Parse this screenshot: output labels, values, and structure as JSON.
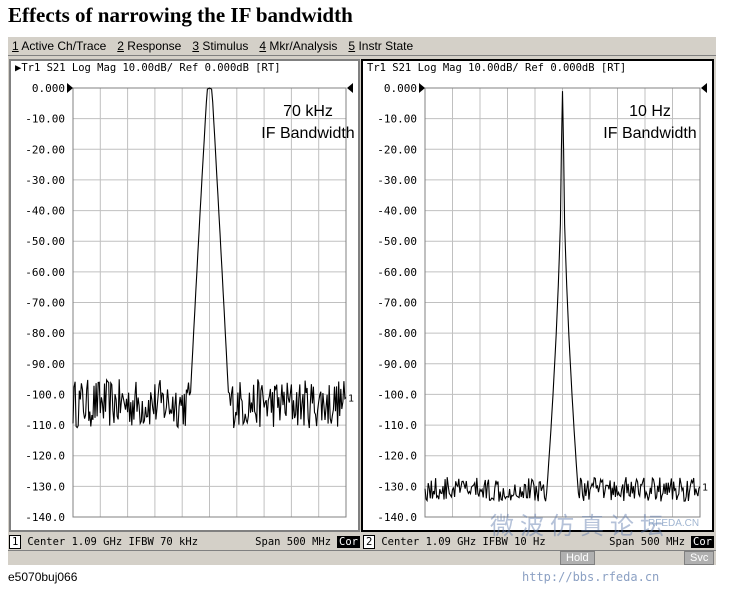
{
  "title": "Effects of narrowing the IF bandwidth",
  "menu": [
    {
      "num": "1",
      "label": " Active Ch/Trace"
    },
    {
      "num": "2",
      "label": " Response"
    },
    {
      "num": "3",
      "label": " Stimulus"
    },
    {
      "num": "4",
      "label": " Mkr/Analysis"
    },
    {
      "num": "5",
      "label": " Instr State"
    }
  ],
  "chart_data": [
    {
      "type": "line",
      "header": "Tr1 S21 Log Mag 10.00dB/ Ref 0.000dB [RT]",
      "annotation": [
        "70 kHz",
        "IF Bandwidth"
      ],
      "ylim": [
        -140,
        0
      ],
      "yticks": [
        "0.000",
        "-10.00",
        "-20.00",
        "-30.00",
        "-40.00",
        "-50.00",
        "-60.00",
        "-70.00",
        "-80.00",
        "-90.00",
        "-100.0",
        "-110.0",
        "-120.0",
        "-130.0",
        "-140.0"
      ],
      "xlim": [
        0.84,
        1.34
      ],
      "x_unit": "GHz",
      "center_ghz": 1.09,
      "noise_floor_db": -103,
      "noise_amplitude_db": 8,
      "peak_db": 0,
      "trace_marker": "1",
      "status": {
        "chan": "1",
        "center": "Center 1.09 GHz",
        "ifbw": "IFBW 70 kHz",
        "span": "Span 500 MHz",
        "cor": "Cor"
      }
    },
    {
      "type": "line",
      "header": "Tr1 S21 Log Mag 10.00dB/ Ref 0.000dB [RT]",
      "annotation": [
        "10 Hz",
        "IF Bandwidth"
      ],
      "ylim": [
        -140,
        0
      ],
      "yticks": [
        "0.000",
        "-10.00",
        "-20.00",
        "-30.00",
        "-40.00",
        "-50.00",
        "-60.00",
        "-70.00",
        "-80.00",
        "-90.00",
        "-100.0",
        "-110.0",
        "-120.0",
        "-130.0",
        "-140.0"
      ],
      "xlim": [
        0.84,
        1.34
      ],
      "x_unit": "GHz",
      "center_ghz": 1.09,
      "noise_floor_db": -131,
      "noise_amplitude_db": 4,
      "peak_db": 0,
      "trace_marker": "1",
      "status": {
        "chan": "2",
        "center": "Center 1.09 GHz",
        "ifbw": "IFBW 10 Hz",
        "span": "Span 500 MHz",
        "cor": "Cor"
      }
    }
  ],
  "bottombar": {
    "hold": "Hold",
    "svc": "Svc"
  },
  "caption": "e5070buj066",
  "watermark": {
    "text": "微波仿真论坛",
    "url": "http://bbs.rfeda.cn",
    "small": "RFEDA.CN"
  }
}
